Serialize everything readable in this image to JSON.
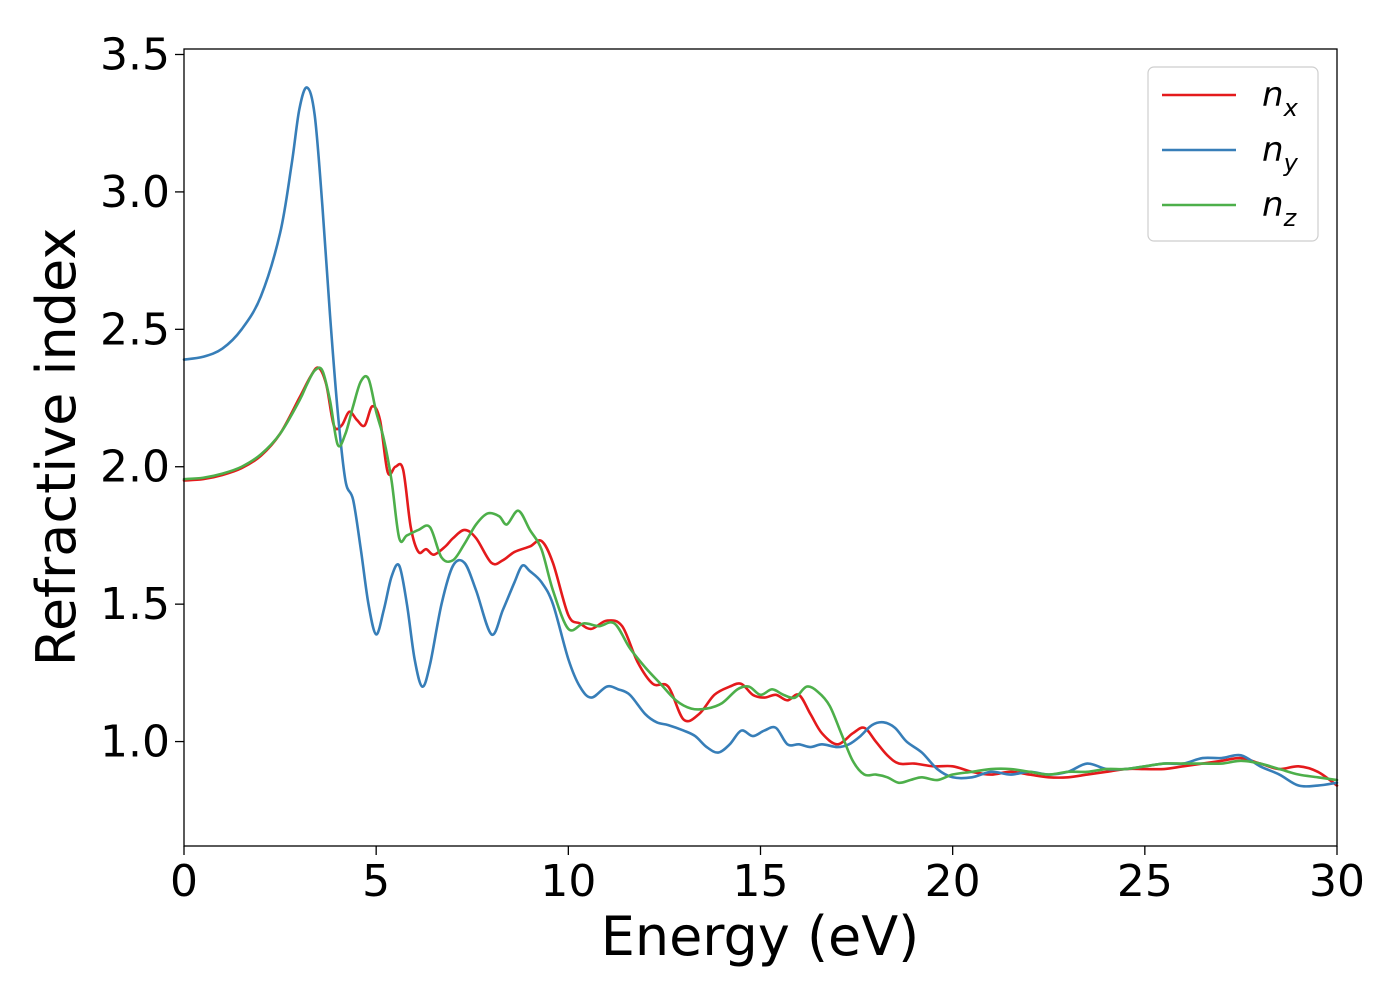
{
  "chart_data": {
    "type": "line",
    "title": "",
    "xlabel": "Energy (eV)",
    "ylabel": "Refractive index",
    "xlim": [
      0,
      30
    ],
    "ylim": [
      0.62,
      3.52
    ],
    "xticks": [
      0,
      5,
      10,
      15,
      20,
      25,
      30
    ],
    "xtick_labels": [
      "0",
      "5",
      "10",
      "15",
      "20",
      "25",
      "30"
    ],
    "yticks": [
      1.0,
      1.5,
      2.0,
      2.5,
      3.0,
      3.5
    ],
    "ytick_labels": [
      "1.0",
      "1.5",
      "2.0",
      "2.5",
      "3.0",
      "3.5"
    ],
    "grid": false,
    "legend_position": "top-right",
    "series": [
      {
        "name": "n",
        "subscript": "x",
        "color": "#e41a1c",
        "x": [
          0,
          0.5,
          1.0,
          1.5,
          2.0,
          2.5,
          3.0,
          3.3,
          3.5,
          3.7,
          3.9,
          4.1,
          4.3,
          4.5,
          4.7,
          4.9,
          5.1,
          5.3,
          5.5,
          5.7,
          5.9,
          6.1,
          6.3,
          6.5,
          6.8,
          7.0,
          7.3,
          7.6,
          8.0,
          8.3,
          8.6,
          9.0,
          9.3,
          9.6,
          10.0,
          10.3,
          10.6,
          11.0,
          11.4,
          11.8,
          12.2,
          12.6,
          13.0,
          13.4,
          13.8,
          14.2,
          14.5,
          14.8,
          15.1,
          15.4,
          15.7,
          16.0,
          16.3,
          16.6,
          17.0,
          17.4,
          17.7,
          18.0,
          18.3,
          18.6,
          19.0,
          19.5,
          20.0,
          20.5,
          21.0,
          21.5,
          22.0,
          22.5,
          23.0,
          23.5,
          24.0,
          24.5,
          25.0,
          25.5,
          26.0,
          26.5,
          27.0,
          27.5,
          28.0,
          28.5,
          29.0,
          29.5,
          30.0
        ],
        "y": [
          1.95,
          1.955,
          1.97,
          1.995,
          2.04,
          2.12,
          2.25,
          2.33,
          2.36,
          2.3,
          2.15,
          2.15,
          2.2,
          2.17,
          2.15,
          2.22,
          2.17,
          1.98,
          2.0,
          1.99,
          1.78,
          1.69,
          1.7,
          1.68,
          1.71,
          1.74,
          1.77,
          1.74,
          1.65,
          1.66,
          1.69,
          1.71,
          1.73,
          1.65,
          1.46,
          1.43,
          1.41,
          1.44,
          1.42,
          1.29,
          1.21,
          1.2,
          1.08,
          1.1,
          1.17,
          1.2,
          1.21,
          1.17,
          1.16,
          1.17,
          1.15,
          1.17,
          1.1,
          1.03,
          0.99,
          1.03,
          1.05,
          1.0,
          0.95,
          0.92,
          0.92,
          0.91,
          0.91,
          0.89,
          0.88,
          0.89,
          0.88,
          0.87,
          0.87,
          0.88,
          0.89,
          0.9,
          0.9,
          0.9,
          0.91,
          0.92,
          0.93,
          0.94,
          0.92,
          0.9,
          0.91,
          0.89,
          0.84
        ]
      },
      {
        "name": "n",
        "subscript": "y",
        "color": "#377eb8",
        "x": [
          0,
          0.5,
          1.0,
          1.5,
          2.0,
          2.5,
          2.8,
          3.0,
          3.2,
          3.4,
          3.6,
          3.8,
          4.0,
          4.2,
          4.4,
          4.6,
          4.8,
          5.0,
          5.2,
          5.4,
          5.6,
          5.8,
          6.0,
          6.2,
          6.4,
          6.7,
          7.0,
          7.3,
          7.6,
          8.0,
          8.3,
          8.6,
          8.8,
          9.0,
          9.3,
          9.6,
          10.0,
          10.3,
          10.6,
          11.0,
          11.3,
          11.6,
          12.0,
          12.3,
          12.6,
          13.0,
          13.3,
          13.6,
          13.9,
          14.2,
          14.5,
          14.8,
          15.1,
          15.4,
          15.7,
          16.0,
          16.3,
          16.6,
          17.0,
          17.3,
          17.6,
          17.9,
          18.2,
          18.5,
          18.8,
          19.2,
          19.6,
          20.0,
          20.5,
          21.0,
          21.5,
          22.0,
          22.5,
          23.0,
          23.5,
          24.0,
          24.5,
          25.0,
          25.5,
          26.0,
          26.5,
          27.0,
          27.5,
          28.0,
          28.5,
          29.0,
          29.5,
          30.0
        ],
        "y": [
          2.39,
          2.4,
          2.43,
          2.5,
          2.62,
          2.85,
          3.1,
          3.3,
          3.38,
          3.28,
          2.95,
          2.55,
          2.2,
          1.95,
          1.88,
          1.7,
          1.5,
          1.39,
          1.48,
          1.6,
          1.64,
          1.5,
          1.3,
          1.2,
          1.28,
          1.5,
          1.64,
          1.65,
          1.55,
          1.39,
          1.48,
          1.58,
          1.64,
          1.62,
          1.58,
          1.5,
          1.3,
          1.2,
          1.16,
          1.2,
          1.19,
          1.17,
          1.1,
          1.07,
          1.06,
          1.04,
          1.02,
          0.98,
          0.96,
          0.99,
          1.04,
          1.02,
          1.04,
          1.05,
          0.99,
          0.99,
          0.98,
          0.99,
          0.98,
          0.99,
          1.02,
          1.06,
          1.07,
          1.05,
          1.0,
          0.96,
          0.9,
          0.87,
          0.87,
          0.89,
          0.88,
          0.89,
          0.88,
          0.89,
          0.92,
          0.9,
          0.9,
          0.91,
          0.92,
          0.92,
          0.94,
          0.94,
          0.95,
          0.91,
          0.88,
          0.84,
          0.84,
          0.85
        ]
      },
      {
        "name": "n",
        "subscript": "z",
        "color": "#4daf4a",
        "x": [
          0,
          0.5,
          1.0,
          1.5,
          2.0,
          2.5,
          3.0,
          3.2,
          3.4,
          3.6,
          3.8,
          4.0,
          4.2,
          4.4,
          4.6,
          4.8,
          5.0,
          5.2,
          5.4,
          5.6,
          5.8,
          6.1,
          6.4,
          6.7,
          7.0,
          7.3,
          7.6,
          7.9,
          8.2,
          8.4,
          8.7,
          9.0,
          9.3,
          9.6,
          10.0,
          10.4,
          10.8,
          11.2,
          11.6,
          12.0,
          12.4,
          12.8,
          13.2,
          13.6,
          14.0,
          14.4,
          14.7,
          15.0,
          15.3,
          15.6,
          15.9,
          16.2,
          16.5,
          16.8,
          17.1,
          17.4,
          17.7,
          18.0,
          18.3,
          18.6,
          18.9,
          19.2,
          19.6,
          20.0,
          20.5,
          21.0,
          21.5,
          22.0,
          22.5,
          23.0,
          23.5,
          24.0,
          24.5,
          25.0,
          25.5,
          26.0,
          26.5,
          27.0,
          27.5,
          28.0,
          28.5,
          29.0,
          29.5,
          30.0
        ],
        "y": [
          1.955,
          1.96,
          1.975,
          2.0,
          2.045,
          2.12,
          2.24,
          2.3,
          2.35,
          2.35,
          2.24,
          2.08,
          2.12,
          2.22,
          2.31,
          2.32,
          2.2,
          2.1,
          1.95,
          1.74,
          1.75,
          1.77,
          1.78,
          1.67,
          1.66,
          1.72,
          1.79,
          1.83,
          1.82,
          1.79,
          1.84,
          1.77,
          1.7,
          1.55,
          1.41,
          1.43,
          1.42,
          1.43,
          1.34,
          1.27,
          1.21,
          1.15,
          1.12,
          1.12,
          1.14,
          1.19,
          1.2,
          1.17,
          1.19,
          1.17,
          1.16,
          1.2,
          1.18,
          1.13,
          1.03,
          0.93,
          0.88,
          0.88,
          0.87,
          0.85,
          0.86,
          0.87,
          0.86,
          0.88,
          0.89,
          0.9,
          0.9,
          0.89,
          0.88,
          0.89,
          0.89,
          0.9,
          0.9,
          0.91,
          0.92,
          0.92,
          0.92,
          0.92,
          0.93,
          0.92,
          0.9,
          0.88,
          0.87,
          0.86
        ]
      }
    ]
  }
}
